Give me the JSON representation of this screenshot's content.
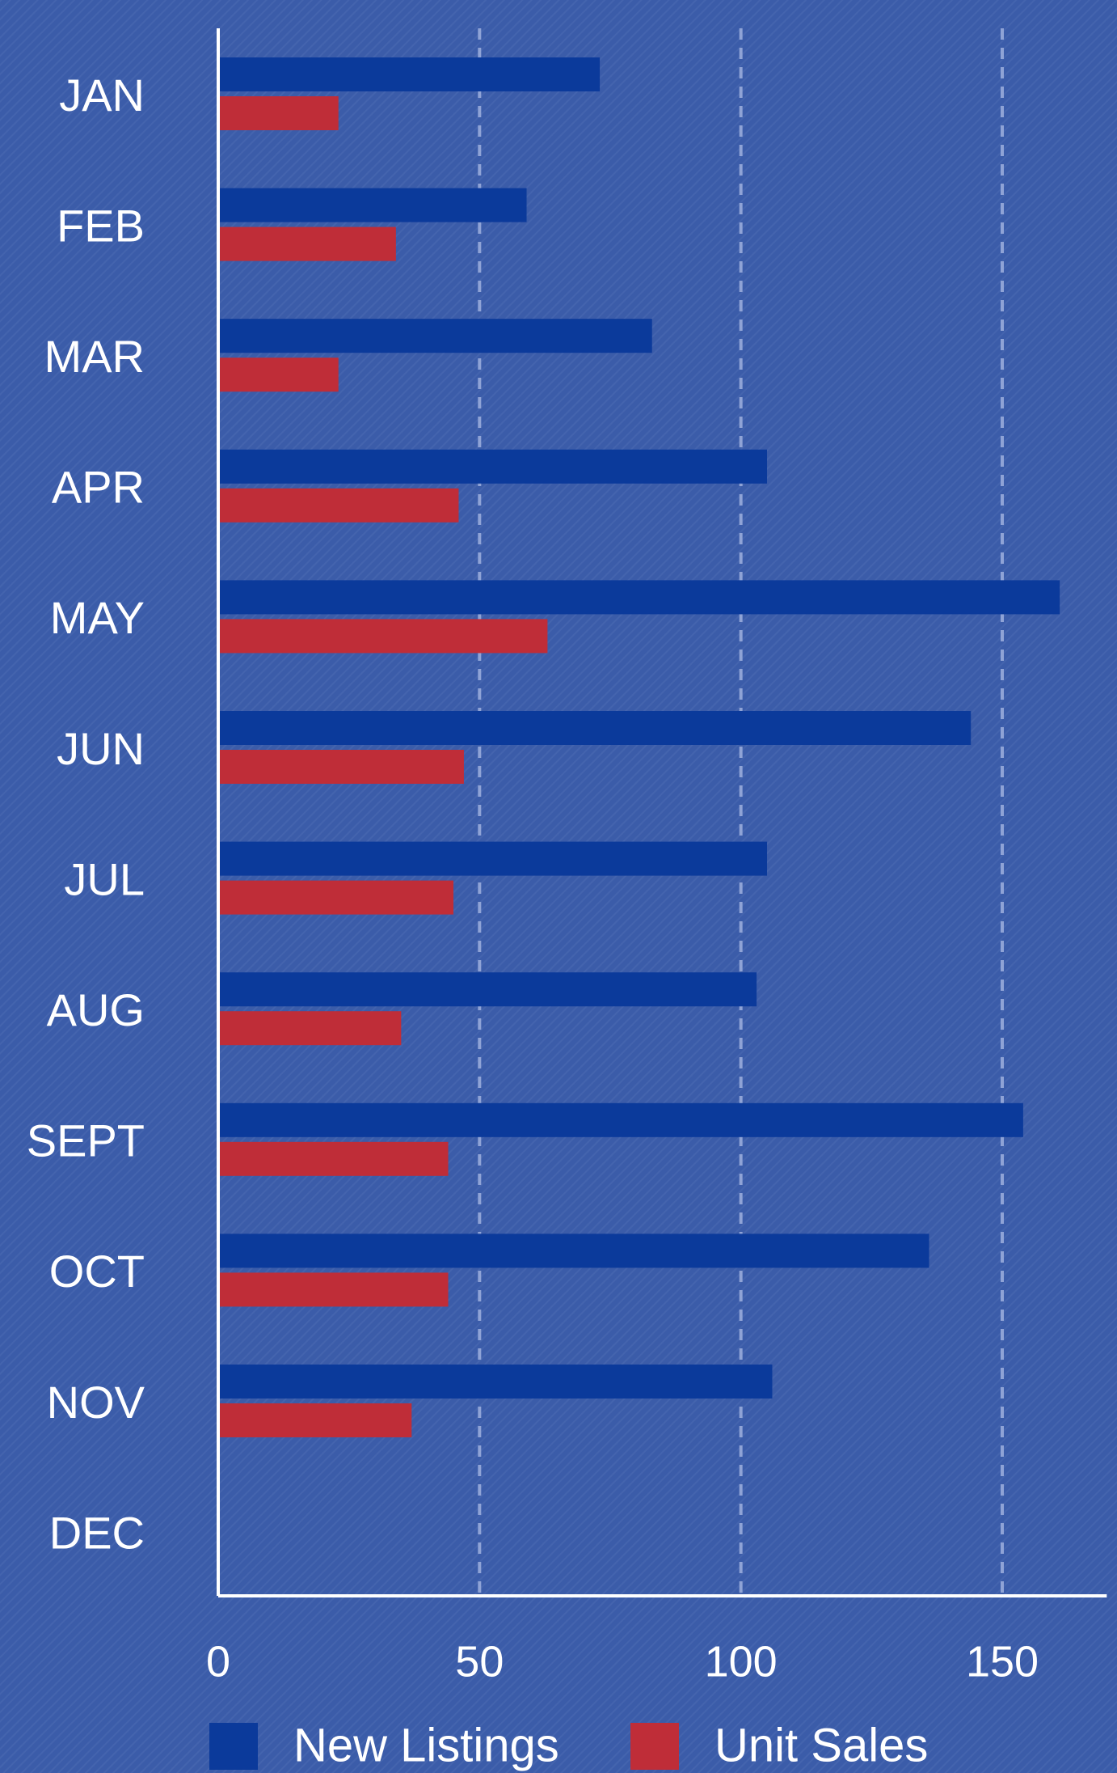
{
  "chart_data": {
    "type": "bar",
    "orientation": "horizontal",
    "categories": [
      "JAN",
      "FEB",
      "MAR",
      "APR",
      "MAY",
      "JUN",
      "JUL",
      "AUG",
      "SEPT",
      "OCT",
      "NOV",
      "DEC"
    ],
    "series": [
      {
        "name": "New Listings",
        "color": "#0b3a9b",
        "values": [
          73,
          59,
          83,
          105,
          161,
          144,
          105,
          103,
          154,
          136,
          106,
          null
        ]
      },
      {
        "name": "Unit Sales",
        "color": "#bf2d38",
        "values": [
          23,
          34,
          23,
          46,
          63,
          47,
          45,
          35,
          44,
          44,
          37,
          null
        ]
      }
    ],
    "xlim": [
      0,
      170
    ],
    "xticks": [
      0,
      50,
      100,
      150
    ],
    "grid": true,
    "legend": "bottom"
  }
}
